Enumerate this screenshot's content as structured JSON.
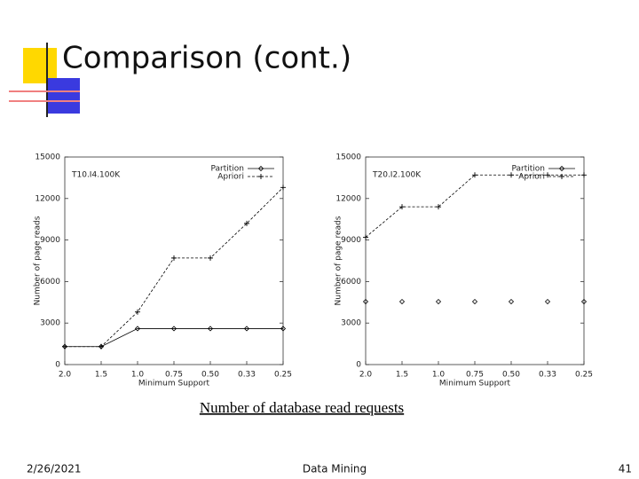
{
  "slide": {
    "title": "Comparison (cont.)",
    "caption": "Number of database read requests",
    "footer": {
      "date": "2/26/2021",
      "center": "Data Mining",
      "page": "41"
    }
  },
  "chart_data": [
    {
      "type": "line",
      "title": "T10.I4.100K",
      "x_label": "Minimum Support",
      "y_label": "Number of page reads",
      "categories": [
        "2.0",
        "1.5",
        "1.0",
        "0.75",
        "0.50",
        "0.33",
        "0.25"
      ],
      "series": [
        {
          "name": "Partition",
          "color": "#000000",
          "marker": "diamond",
          "line": "solid",
          "values": [
            1300,
            1300,
            2600,
            2600,
            2600,
            2600,
            2600
          ]
        },
        {
          "name": "Apriori",
          "color": "#000000",
          "marker": "plus",
          "line": "dashed",
          "values": [
            1300,
            1300,
            3800,
            7700,
            7700,
            10200,
            12800
          ]
        }
      ],
      "ylim": [
        0,
        15000
      ],
      "yticks": [
        0,
        3000,
        6000,
        9000,
        12000,
        15000
      ],
      "legend": "upper right"
    },
    {
      "type": "line",
      "title": "T20.I2.100K",
      "x_label": "Minimum Support",
      "y_label": "Number of page reads",
      "categories": [
        "2.0",
        "1.5",
        "1.0",
        "0.75",
        "0.50",
        "0.33",
        "0.25"
      ],
      "series": [
        {
          "name": "Partition",
          "color": "#000000",
          "marker": "diamond",
          "line": "none",
          "values": [
            4550,
            4550,
            4550,
            4550,
            4550,
            4550,
            4550
          ]
        },
        {
          "name": "Apriori",
          "color": "#000000",
          "marker": "plus",
          "line": "dashed",
          "values": [
            9200,
            11400,
            11400,
            13700,
            13700,
            13700,
            13700
          ]
        }
      ],
      "ylim": [
        0,
        15000
      ],
      "yticks": [
        0,
        3000,
        6000,
        9000,
        12000,
        15000
      ],
      "legend": "upper right"
    }
  ]
}
